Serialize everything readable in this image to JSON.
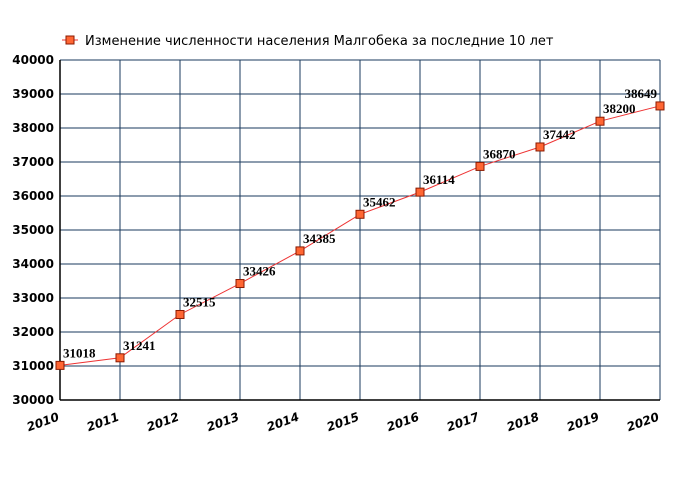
{
  "chart_data": {
    "type": "line",
    "title": "",
    "xlabel": "",
    "ylabel": "",
    "x": [
      2010,
      2011,
      2012,
      2013,
      2014,
      2015,
      2016,
      2017,
      2018,
      2019,
      2020
    ],
    "series": [
      {
        "name": "Изменение численности населения Малгобека за последние 10 лет",
        "values": [
          31018,
          31241,
          32515,
          33426,
          34385,
          35462,
          36114,
          36870,
          37442,
          38200,
          38649
        ],
        "color": "#ee3333",
        "marker_color": "#ff6633"
      }
    ],
    "ylim": [
      30000,
      40000
    ],
    "yticks": [
      30000,
      31000,
      32000,
      33000,
      34000,
      35000,
      36000,
      37000,
      38000,
      39000,
      40000
    ],
    "grid": true,
    "grid_color": "#1a3a5c",
    "legend_position": "top",
    "data_labels": true
  }
}
